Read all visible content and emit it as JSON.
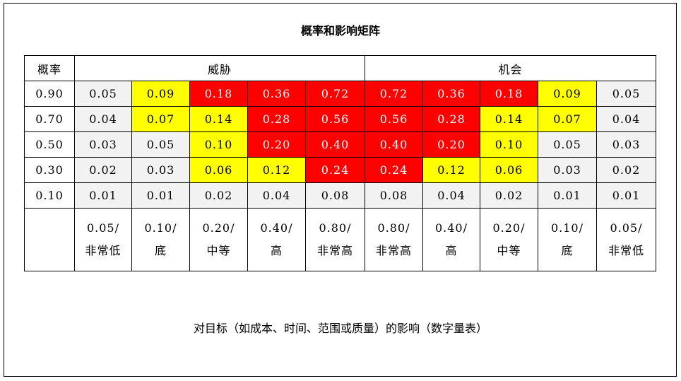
{
  "title": "概率和影响矩阵",
  "headers": {
    "probability": "概率",
    "threat": "威胁",
    "opportunity": "机会"
  },
  "colors": {
    "red": "#ff0000",
    "yellow": "#ffff00",
    "gray": "#f2f2f2"
  },
  "rows": [
    {
      "prob": "0.90",
      "cells": [
        {
          "v": "0.05",
          "c": "gray"
        },
        {
          "v": "0.09",
          "c": "yellow"
        },
        {
          "v": "0.18",
          "c": "red"
        },
        {
          "v": "0.36",
          "c": "red"
        },
        {
          "v": "0.72",
          "c": "red"
        },
        {
          "v": "0.72",
          "c": "red"
        },
        {
          "v": "0.36",
          "c": "red"
        },
        {
          "v": "0.18",
          "c": "red"
        },
        {
          "v": "0.09",
          "c": "yellow"
        },
        {
          "v": "0.05",
          "c": "gray"
        }
      ]
    },
    {
      "prob": "0.70",
      "cells": [
        {
          "v": "0.04",
          "c": "gray"
        },
        {
          "v": "0.07",
          "c": "yellow"
        },
        {
          "v": "0.14",
          "c": "yellow"
        },
        {
          "v": "0.28",
          "c": "red"
        },
        {
          "v": "0.56",
          "c": "red"
        },
        {
          "v": "0.56",
          "c": "red"
        },
        {
          "v": "0.28",
          "c": "red"
        },
        {
          "v": "0.14",
          "c": "yellow"
        },
        {
          "v": "0.07",
          "c": "yellow"
        },
        {
          "v": "0.04",
          "c": "gray"
        }
      ]
    },
    {
      "prob": "0.50",
      "cells": [
        {
          "v": "0.03",
          "c": "gray"
        },
        {
          "v": "0.05",
          "c": "gray"
        },
        {
          "v": "0.10",
          "c": "yellow"
        },
        {
          "v": "0.20",
          "c": "red"
        },
        {
          "v": "0.40",
          "c": "red"
        },
        {
          "v": "0.40",
          "c": "red"
        },
        {
          "v": "0.20",
          "c": "red"
        },
        {
          "v": "0.10",
          "c": "yellow"
        },
        {
          "v": "0.05",
          "c": "gray"
        },
        {
          "v": "0.03",
          "c": "gray"
        }
      ]
    },
    {
      "prob": "0.30",
      "cells": [
        {
          "v": "0.02",
          "c": "gray"
        },
        {
          "v": "0.03",
          "c": "gray"
        },
        {
          "v": "0.06",
          "c": "yellow"
        },
        {
          "v": "0.12",
          "c": "yellow"
        },
        {
          "v": "0.24",
          "c": "red"
        },
        {
          "v": "0.24",
          "c": "red"
        },
        {
          "v": "0.12",
          "c": "yellow"
        },
        {
          "v": "0.06",
          "c": "yellow"
        },
        {
          "v": "0.03",
          "c": "gray"
        },
        {
          "v": "0.02",
          "c": "gray"
        }
      ]
    },
    {
      "prob": "0.10",
      "cells": [
        {
          "v": "0.01",
          "c": "gray"
        },
        {
          "v": "0.01",
          "c": "gray"
        },
        {
          "v": "0.02",
          "c": "gray"
        },
        {
          "v": "0.04",
          "c": "gray"
        },
        {
          "v": "0.08",
          "c": "gray"
        },
        {
          "v": "0.08",
          "c": "gray"
        },
        {
          "v": "0.04",
          "c": "gray"
        },
        {
          "v": "0.02",
          "c": "gray"
        },
        {
          "v": "0.01",
          "c": "gray"
        },
        {
          "v": "0.01",
          "c": "gray"
        }
      ]
    }
  ],
  "impact": [
    {
      "value": "0.05/",
      "label": "非常低"
    },
    {
      "value": "0.10/",
      "label": "底"
    },
    {
      "value": "0.20/",
      "label": "中等"
    },
    {
      "value": "0.40/",
      "label": "高"
    },
    {
      "value": "0.80/",
      "label": "非常高"
    },
    {
      "value": "0.80/",
      "label": "非常高"
    },
    {
      "value": "0.40/",
      "label": "高"
    },
    {
      "value": "0.20/",
      "label": "中等"
    },
    {
      "value": "0.10/",
      "label": "底"
    },
    {
      "value": "0.05/",
      "label": "非常低"
    }
  ],
  "caption": "对目标（如成本、时间、范围或质量）的影响（数字量表）"
}
